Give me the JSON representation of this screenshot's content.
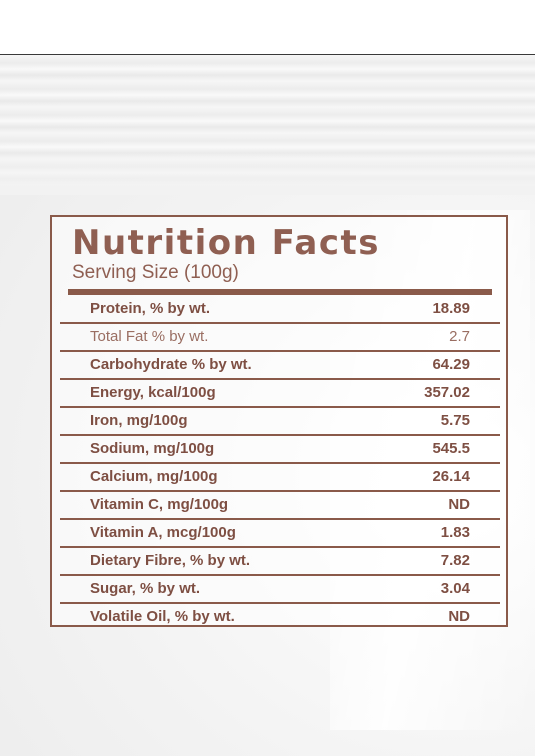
{
  "panel": {
    "title": "Nutrition Facts",
    "serving_size": "Serving Size (100g)",
    "rows": [
      {
        "label": "Protein, % by wt.",
        "value": "18.89"
      },
      {
        "label": "Total Fat % by wt.",
        "value": "2.7"
      },
      {
        "label": "Carbohydrate % by wt.",
        "value": "64.29"
      },
      {
        "label": "Energy, kcal/100g",
        "value": "357.02"
      },
      {
        "label": "Iron, mg/100g",
        "value": "5.75"
      },
      {
        "label": "Sodium, mg/100g",
        "value": "545.5"
      },
      {
        "label": "Calcium, mg/100g",
        "value": "26.14"
      },
      {
        "label": "Vitamin C, mg/100g",
        "value": "ND"
      },
      {
        "label": "Vitamin A, mcg/100g",
        "value": "1.83"
      },
      {
        "label": "Dietary Fibre, % by wt.",
        "value": "7.82"
      },
      {
        "label": "Sugar, % by wt.",
        "value": "3.04"
      },
      {
        "label": "Volatile Oil, % by wt.",
        "value": "ND"
      }
    ]
  },
  "colors": {
    "text_brown": "#8f5f52",
    "rule_brown": "#8a5a4a",
    "package_white": "#f3f3f3"
  }
}
